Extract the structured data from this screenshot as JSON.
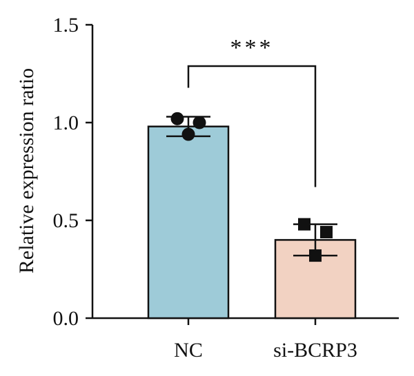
{
  "chart_data": {
    "type": "bar",
    "ylabel": "Relative expression ratio",
    "xlabel": "",
    "ylim": [
      0,
      1.5
    ],
    "yticks": [
      "0.0",
      "0.5",
      "1.0",
      "1.5"
    ],
    "categories": [
      "NC",
      "si-BCRP3"
    ],
    "series": [
      {
        "values": [
          0.98,
          0.4
        ],
        "error": [
          0.05,
          0.08
        ],
        "colors": [
          "#9ecbd8",
          "#f2d2c2"
        ],
        "points": [
          [
            1.02,
            1.0,
            0.94
          ],
          [
            0.48,
            0.44,
            0.32
          ]
        ],
        "markers": [
          "circle",
          "square"
        ]
      }
    ],
    "significance": {
      "from": 0,
      "to": 1,
      "label": "***"
    },
    "grid": false,
    "legend": "none"
  }
}
